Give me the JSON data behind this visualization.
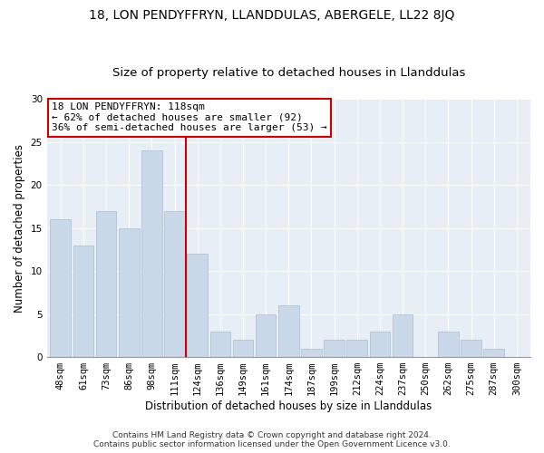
{
  "title": "18, LON PENDYFFRYN, LLANDDULAS, ABERGELE, LL22 8JQ",
  "subtitle": "Size of property relative to detached houses in Llanddulas",
  "xlabel": "Distribution of detached houses by size in Llanddulas",
  "ylabel": "Number of detached properties",
  "categories": [
    "48sqm",
    "61sqm",
    "73sqm",
    "86sqm",
    "98sqm",
    "111sqm",
    "124sqm",
    "136sqm",
    "149sqm",
    "161sqm",
    "174sqm",
    "187sqm",
    "199sqm",
    "212sqm",
    "224sqm",
    "237sqm",
    "250sqm",
    "262sqm",
    "275sqm",
    "287sqm",
    "300sqm"
  ],
  "values": [
    16,
    13,
    17,
    15,
    24,
    17,
    12,
    3,
    2,
    5,
    6,
    1,
    2,
    2,
    3,
    5,
    0,
    3,
    2,
    1,
    0
  ],
  "bar_color": "#c9d9ea",
  "bar_edgecolor": "#aabcce",
  "vline_x": 6.0,
  "vline_color": "#cc0000",
  "annotation_text": "18 LON PENDYFFRYN: 118sqm\n← 62% of detached houses are smaller (92)\n36% of semi-detached houses are larger (53) →",
  "annotation_box_color": "#ffffff",
  "annotation_box_edgecolor": "#cc0000",
  "ylim": [
    0,
    30
  ],
  "yticks": [
    0,
    5,
    10,
    15,
    20,
    25,
    30
  ],
  "footer_text": "Contains HM Land Registry data © Crown copyright and database right 2024.\nContains public sector information licensed under the Open Government Licence v3.0.",
  "bg_color": "#e8eef5",
  "title_fontsize": 10,
  "subtitle_fontsize": 9.5,
  "axis_label_fontsize": 8.5,
  "tick_fontsize": 7.5,
  "annotation_fontsize": 8,
  "footer_fontsize": 6.5
}
